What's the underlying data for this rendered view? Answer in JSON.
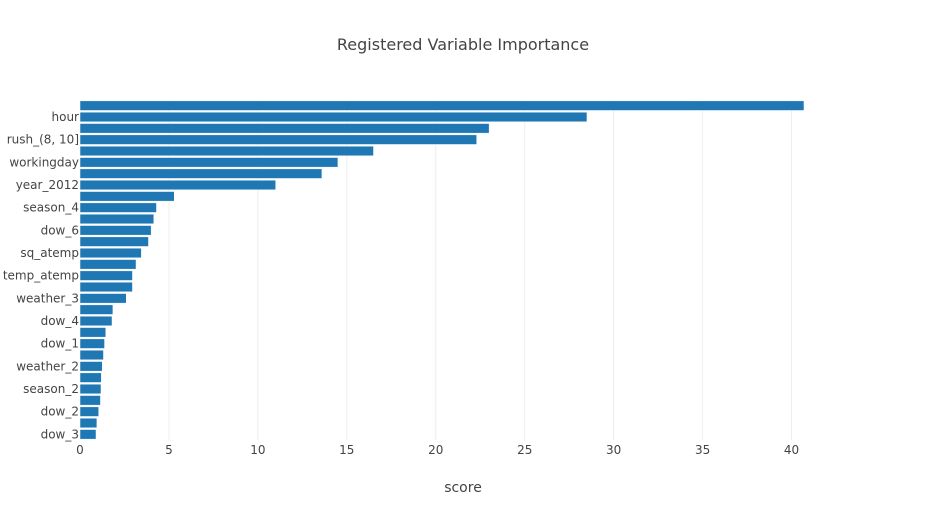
{
  "chart_data": {
    "type": "bar",
    "orientation": "horizontal",
    "title": "Registered Variable Importance",
    "xlabel": "score",
    "ylabel": "",
    "xlim": [
      0,
      42.5
    ],
    "xticks": [
      0,
      5,
      10,
      15,
      20,
      25,
      30,
      35,
      40
    ],
    "grid": true,
    "bar_color": "#1f77b4",
    "category_order": "top-to-bottom",
    "categories_visible_labels": [
      "hour",
      "rush_(8, 10]",
      "workingday",
      "year_2012",
      "season_4",
      "dow_6",
      "sq_atemp",
      "temp_atemp",
      "weather_3",
      "dow_4",
      "dow_1",
      "weather_2",
      "season_2",
      "dow_2",
      "dow_3"
    ],
    "bars": [
      {
        "label": "",
        "value": 40.7
      },
      {
        "label": "hour",
        "value": 28.5
      },
      {
        "label": "",
        "value": 23.0
      },
      {
        "label": "rush_(8, 10]",
        "value": 22.3
      },
      {
        "label": "",
        "value": 16.5
      },
      {
        "label": "workingday",
        "value": 14.5
      },
      {
        "label": "",
        "value": 13.6
      },
      {
        "label": "year_2012",
        "value": 11.0
      },
      {
        "label": "",
        "value": 5.3
      },
      {
        "label": "season_4",
        "value": 4.3
      },
      {
        "label": "",
        "value": 4.15
      },
      {
        "label": "dow_6",
        "value": 4.0
      },
      {
        "label": "",
        "value": 3.85
      },
      {
        "label": "sq_atemp",
        "value": 3.45
      },
      {
        "label": "",
        "value": 3.15
      },
      {
        "label": "temp_atemp",
        "value": 2.95
      },
      {
        "label": "",
        "value": 2.95
      },
      {
        "label": "weather_3",
        "value": 2.6
      },
      {
        "label": "",
        "value": 1.85
      },
      {
        "label": "dow_4",
        "value": 1.8
      },
      {
        "label": "",
        "value": 1.45
      },
      {
        "label": "dow_1",
        "value": 1.38
      },
      {
        "label": "",
        "value": 1.32
      },
      {
        "label": "weather_2",
        "value": 1.25
      },
      {
        "label": "",
        "value": 1.2
      },
      {
        "label": "season_2",
        "value": 1.18
      },
      {
        "label": "",
        "value": 1.15
      },
      {
        "label": "dow_2",
        "value": 1.05
      },
      {
        "label": "",
        "value": 0.95
      },
      {
        "label": "dow_3",
        "value": 0.9
      }
    ]
  }
}
